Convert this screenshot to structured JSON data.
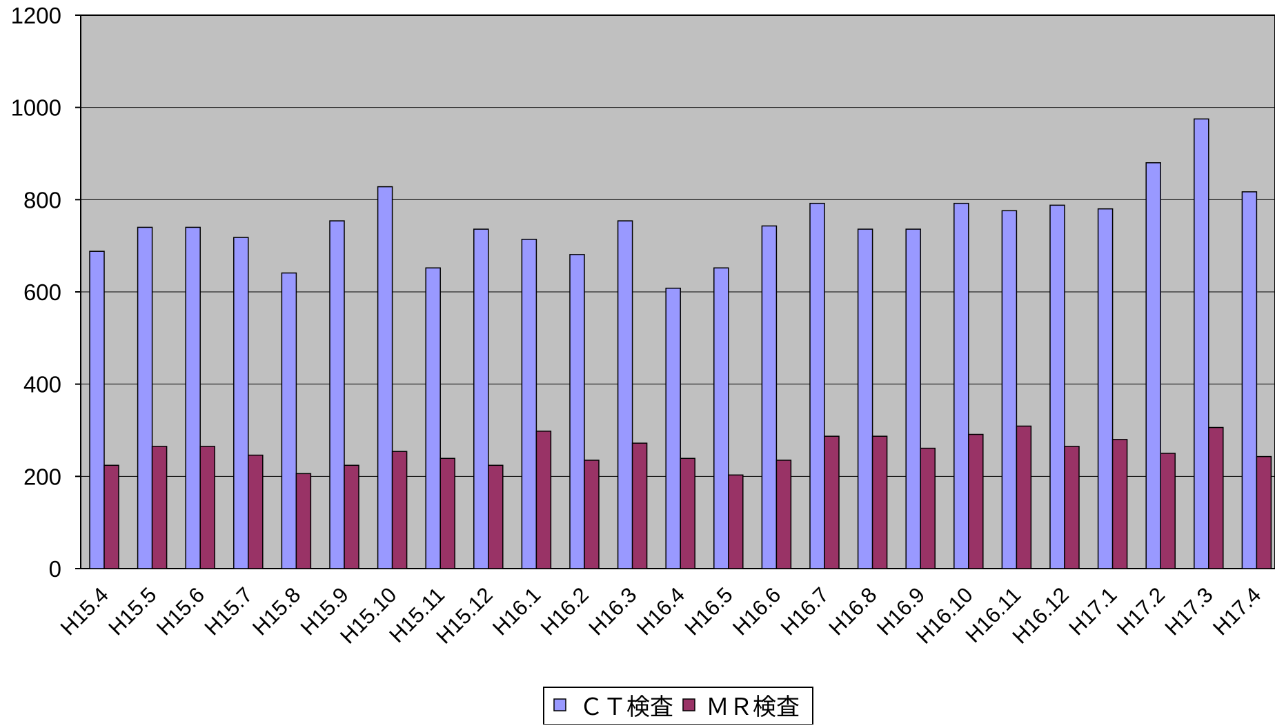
{
  "chart_data": {
    "type": "bar",
    "title": "",
    "xlabel": "",
    "ylabel": "",
    "ylim": [
      0,
      1200
    ],
    "yticks": [
      "0",
      "200",
      "400",
      "600",
      "800",
      "1000",
      "1200"
    ],
    "grid": true,
    "legend_position": "bottom-center",
    "categories": [
      "H15.4",
      "H15.5",
      "H15.6",
      "H15.7",
      "H15.8",
      "H15.9",
      "H15.10",
      "H15.11",
      "H15.12",
      "H16.1",
      "H16.2",
      "H16.3",
      "H16.4",
      "H16.5",
      "H16.6",
      "H16.7",
      "H16.8",
      "H16.9",
      "H16.10",
      "H16.11",
      "H16.12",
      "H17.1",
      "H17.2",
      "H17.3",
      "H17.4"
    ],
    "series": [
      {
        "name": "ＣＴ検査",
        "color": "#9999ff",
        "values": [
          688,
          740,
          740,
          718,
          641,
          754,
          828,
          652,
          736,
          714,
          681,
          754,
          608,
          652,
          743,
          792,
          736,
          736,
          792,
          776,
          788,
          780,
          880,
          975,
          817
        ]
      },
      {
        "name": "ＭＲ検査",
        "color": "#993366",
        "values": [
          224,
          265,
          265,
          246,
          206,
          224,
          254,
          239,
          224,
          298,
          235,
          272,
          239,
          203,
          235,
          287,
          287,
          261,
          291,
          309,
          265,
          280,
          250,
          306,
          243
        ]
      }
    ],
    "plot_background": "#c0c0c0"
  }
}
